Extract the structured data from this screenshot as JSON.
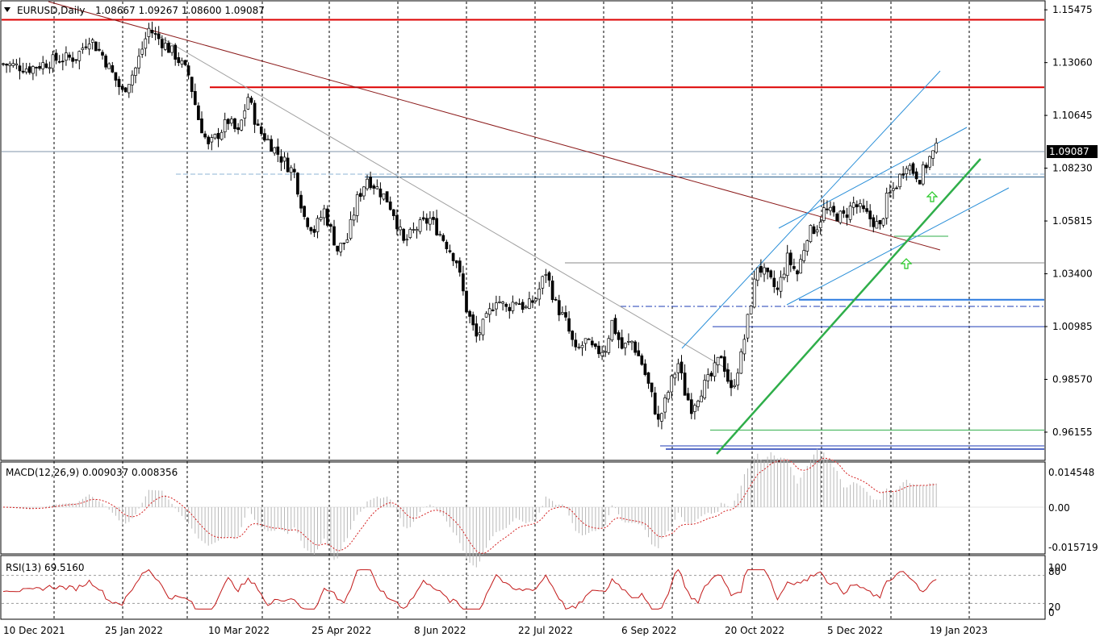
{
  "header": {
    "symbol_label": "EURUSD,Daily",
    "ohlc_label": "1.08667 1.09267 1.08600 1.09087"
  },
  "current_price_label": "1.09087",
  "chart_data": [
    {
      "type": "candlestick",
      "title": "EURUSD,Daily",
      "ohlc": {
        "open": 1.08667,
        "high": 1.09267,
        "low": 1.086,
        "close": 1.09087
      },
      "ylim": [
        0.949,
        1.1585
      ],
      "y_ticks": [
        1.15475,
        1.1306,
        1.10645,
        1.0823,
        1.05815,
        1.034,
        1.00985,
        0.9857,
        0.96155
      ],
      "y_tick_labels": [
        "1.15475",
        "1.13060",
        "1.10645",
        "1.08230",
        "1.05815",
        "1.03400",
        "1.00985",
        "0.98570",
        "0.96155"
      ],
      "x_tick_labels": [
        "10 Dec 2021",
        "25 Jan 2022",
        "10 Mar 2022",
        "25 Apr 2022",
        "8 Jun 2022",
        "22 Jul 2022",
        "6 Sep 2022",
        "20 Oct 2022",
        "5 Dec 2022",
        "19 Jan 2023"
      ],
      "close_path": [
        [
          0,
          1.13
        ],
        [
          8,
          1.128
        ],
        [
          16,
          1.132
        ],
        [
          22,
          1.133
        ],
        [
          26,
          1.142
        ],
        [
          30,
          1.134
        ],
        [
          36,
          1.117
        ],
        [
          40,
          1.128
        ],
        [
          44,
          1.146
        ],
        [
          48,
          1.14
        ],
        [
          52,
          1.134
        ],
        [
          56,
          1.125
        ],
        [
          59,
          1.105
        ],
        [
          62,
          1.092
        ],
        [
          65,
          1.098
        ],
        [
          68,
          1.104
        ],
        [
          71,
          1.098
        ],
        [
          74,
          1.115
        ],
        [
          77,
          1.1
        ],
        [
          80,
          1.095
        ],
        [
          84,
          1.087
        ],
        [
          88,
          1.08
        ],
        [
          91,
          1.06
        ],
        [
          94,
          1.054
        ],
        [
          97,
          1.063
        ],
        [
          101,
          1.045
        ],
        [
          104,
          1.05
        ],
        [
          107,
          1.068
        ],
        [
          110,
          1.078
        ],
        [
          113,
          1.073
        ],
        [
          116,
          1.068
        ],
        [
          118,
          1.062
        ],
        [
          121,
          1.048
        ],
        [
          125,
          1.055
        ],
        [
          129,
          1.059
        ],
        [
          133,
          1.05
        ],
        [
          137,
          1.04
        ],
        [
          140,
          1.018
        ],
        [
          143,
          1.005
        ],
        [
          146,
          1.013
        ],
        [
          149,
          1.023
        ],
        [
          152,
          1.018
        ],
        [
          155,
          1.022
        ],
        [
          158,
          1.018
        ],
        [
          161,
          1.023
        ],
        [
          164,
          1.035
        ],
        [
          167,
          1.02
        ],
        [
          170,
          1.012
        ],
        [
          173,
          0.998
        ],
        [
          176,
          1.003
        ],
        [
          179,
          0.998
        ],
        [
          182,
          1.0
        ],
        [
          184,
          1.012
        ],
        [
          187,
          1.0
        ],
        [
          190,
          1.003
        ],
        [
          193,
          0.993
        ],
        [
          196,
          0.978
        ],
        [
          198,
          0.966
        ],
        [
          200,
          0.975
        ],
        [
          202,
          0.985
        ],
        [
          204,
          0.993
        ],
        [
          206,
          0.98
        ],
        [
          208,
          0.973
        ],
        [
          211,
          0.981
        ],
        [
          214,
          0.987
        ],
        [
          217,
          0.997
        ],
        [
          220,
          0.98
        ],
        [
          223,
          0.996
        ],
        [
          225,
          1.013
        ],
        [
          228,
          1.038
        ],
        [
          231,
          1.032
        ],
        [
          234,
          1.026
        ],
        [
          237,
          1.041
        ],
        [
          240,
          1.034
        ],
        [
          243,
          1.052
        ],
        [
          246,
          1.056
        ],
        [
          248,
          1.063
        ],
        [
          251,
          1.061
        ],
        [
          254,
          1.06
        ],
        [
          257,
          1.066
        ],
        [
          260,
          1.062
        ],
        [
          263,
          1.058
        ],
        [
          265,
          1.055
        ],
        [
          267,
          1.068
        ],
        [
          270,
          1.075
        ],
        [
          273,
          1.085
        ],
        [
          275,
          1.081
        ],
        [
          277,
          1.078
        ],
        [
          280,
          1.087
        ],
        [
          282,
          1.091
        ]
      ],
      "lines": {
        "resistance_1": 1.1502,
        "resistance_2": 1.1193,
        "support_1": 1.0221,
        "support_2": 1.0098,
        "support_3": 0.9625,
        "support_4": 0.9545,
        "level_1": 1.039,
        "level_2": 1.0783
      }
    },
    {
      "type": "bar",
      "title": "MACD(12,26,9) 0.009037 0.008356",
      "series": [
        {
          "name": "MACD",
          "values": []
        },
        {
          "name": "Signal",
          "values": []
        }
      ],
      "ylim": [
        -0.0175,
        0.0175
      ],
      "y_tick_labels": [
        "0.014548",
        "0.00",
        "-0.015719"
      ]
    },
    {
      "type": "line",
      "title": "RSI(13) 69.5160",
      "ylim": [
        0,
        100
      ],
      "y_tick_labels": [
        "100",
        "80",
        "20",
        "0"
      ],
      "levels": [
        80,
        20
      ]
    }
  ],
  "colors": {
    "bull_body": "#ffffff",
    "bear_body": "#000000",
    "wick": "#000000",
    "resistance": "#dd0000",
    "support": "#1e3bb4",
    "channel": "#2a8fd8",
    "trend_green": "#2fae4a",
    "trend_down": "#8b1a1a",
    "macd_signal": "#d42020",
    "rsi_line": "#c21818",
    "arrow": "#22c822"
  }
}
